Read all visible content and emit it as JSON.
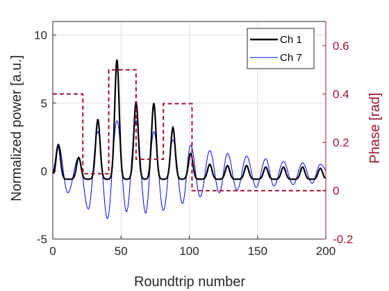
{
  "chart_data": {
    "type": "line",
    "xlabel": "Roundtrip number",
    "ylabel_left": "Normalized power [a.u.]",
    "ylabel_right": "Phase [rad]",
    "xlim": [
      0,
      200
    ],
    "ylim_left": [
      -5,
      11
    ],
    "ylim_right": [
      -0.2,
      0.7
    ],
    "xticks": [
      "0",
      "50",
      "100",
      "150",
      "200"
    ],
    "yticks_left": [
      "-5",
      "0",
      "5",
      "10"
    ],
    "yticks_right": [
      "-0.2",
      "0",
      "0.2",
      "0.4",
      "0.6"
    ],
    "grid": true,
    "legend_position": "top-right",
    "legend": [
      "Ch 1",
      "Ch 7"
    ],
    "colors": {
      "ch1": "#000000",
      "ch7": "#0000ff",
      "phase": "#a2142f",
      "grid": "#e0e0e0"
    },
    "series": [
      {
        "name": "Ch 1",
        "axis": "left",
        "peaks": [
          [
            4,
            1.9
          ],
          [
            19,
            1.0
          ],
          [
            33,
            3.8
          ],
          [
            47,
            8.2
          ],
          [
            61,
            5.1
          ],
          [
            74,
            5.0
          ],
          [
            88,
            3.2
          ],
          [
            101,
            1.3
          ],
          [
            115,
            0.5
          ],
          [
            128,
            0.4
          ],
          [
            142,
            0.4
          ],
          [
            156,
            0.3
          ],
          [
            169,
            0.3
          ],
          [
            183,
            0.3
          ],
          [
            196,
            0.2
          ]
        ],
        "baseline": -0.6
      },
      {
        "name": "Ch 7",
        "axis": "left",
        "peaks": [
          [
            4,
            2.0
          ],
          [
            19,
            1.0
          ],
          [
            33,
            2.9
          ],
          [
            47,
            3.7
          ],
          [
            61,
            3.7
          ],
          [
            74,
            2.9
          ],
          [
            88,
            2.3
          ],
          [
            101,
            1.9
          ],
          [
            115,
            1.5
          ],
          [
            128,
            1.3
          ],
          [
            142,
            1.1
          ],
          [
            156,
            0.9
          ],
          [
            169,
            0.7
          ],
          [
            183,
            0.6
          ],
          [
            196,
            0.5
          ]
        ],
        "troughs": [
          [
            11,
            -1.6
          ],
          [
            26,
            -2.8
          ],
          [
            40,
            -3.5
          ],
          [
            54,
            -3.0
          ],
          [
            68,
            -3.1
          ],
          [
            81,
            -2.9
          ],
          [
            95,
            -2.4
          ],
          [
            108,
            -1.9
          ],
          [
            122,
            -1.6
          ],
          [
            135,
            -1.4
          ],
          [
            149,
            -1.2
          ],
          [
            162,
            -1.1
          ],
          [
            176,
            -1.0
          ],
          [
            190,
            -0.9
          ]
        ]
      },
      {
        "name": "Phase",
        "axis": "right",
        "steps": [
          [
            0,
            0.4
          ],
          [
            22,
            0.07
          ],
          [
            41,
            0.5
          ],
          [
            61,
            0.13
          ],
          [
            81,
            0.36
          ],
          [
            102,
            0.0
          ],
          [
            200,
            0.0
          ]
        ]
      }
    ]
  }
}
